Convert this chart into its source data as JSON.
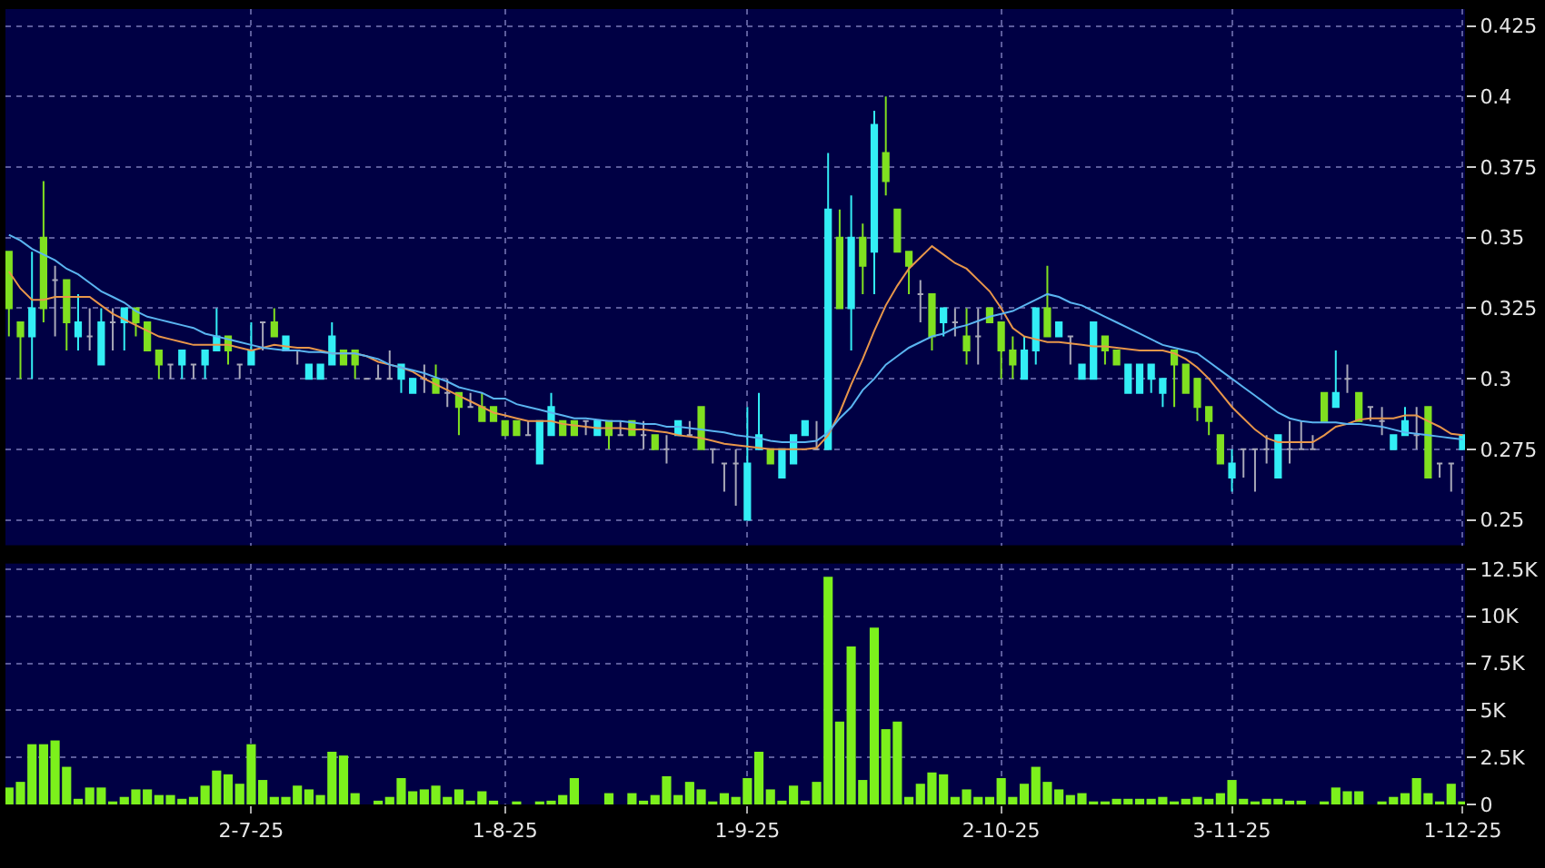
{
  "chart_data": [
    {
      "type": "candlestick",
      "categories": [
        null,
        null,
        null,
        null,
        null,
        null,
        null,
        null,
        null,
        null,
        null,
        null,
        null,
        null,
        null,
        null,
        null,
        null,
        null,
        null,
        null,
        null,
        null,
        null,
        null,
        null,
        null,
        null,
        null,
        null,
        null,
        null,
        null,
        null,
        null,
        null,
        null,
        null,
        null,
        null,
        null,
        null,
        null,
        null,
        null,
        null,
        null,
        null,
        null,
        null,
        null,
        null,
        null,
        null,
        null,
        null,
        null,
        null,
        null,
        null,
        null,
        null,
        null,
        null,
        null,
        null,
        null,
        null,
        null,
        null,
        null,
        null,
        null,
        null,
        null,
        null,
        null,
        null,
        null,
        null,
        null,
        null,
        null,
        null,
        null,
        null,
        null,
        null,
        null,
        null,
        null,
        null,
        null,
        null,
        null,
        null,
        null,
        null,
        null,
        null,
        null,
        null,
        null,
        null,
        null,
        null,
        null,
        null,
        null,
        null,
        null,
        null,
        null,
        null,
        null,
        null,
        null,
        null,
        null,
        null,
        null,
        null,
        null,
        null,
        null,
        null,
        null
      ],
      "ohlc": [
        [
          0.345,
          0.345,
          0.315,
          0.325
        ],
        [
          0.32,
          0.32,
          0.3,
          0.315
        ],
        [
          0.315,
          0.345,
          0.3,
          0.325
        ],
        [
          0.35,
          0.37,
          0.32,
          0.325
        ],
        [
          0.335,
          0.34,
          0.315,
          0.335
        ],
        [
          0.335,
          0.335,
          0.31,
          0.32
        ],
        [
          0.315,
          0.33,
          0.31,
          0.32
        ],
        [
          0.315,
          0.325,
          0.31,
          0.315
        ],
        [
          0.305,
          0.325,
          0.305,
          0.32
        ],
        [
          0.32,
          0.325,
          0.31,
          0.32
        ],
        [
          0.32,
          0.325,
          0.31,
          0.325
        ],
        [
          0.325,
          0.325,
          0.315,
          0.32
        ],
        [
          0.32,
          0.32,
          0.31,
          0.31
        ],
        [
          0.31,
          0.31,
          0.3,
          0.305
        ],
        [
          0.305,
          0.305,
          0.3,
          0.305
        ],
        [
          0.305,
          0.31,
          0.3,
          0.31
        ],
        [
          0.305,
          0.305,
          0.3,
          0.305
        ],
        [
          0.305,
          0.31,
          0.3,
          0.31
        ],
        [
          0.31,
          0.325,
          0.31,
          0.315
        ],
        [
          0.315,
          0.315,
          0.305,
          0.31
        ],
        [
          0.305,
          0.305,
          0.3,
          0.305
        ],
        [
          0.305,
          0.32,
          0.305,
          0.31
        ],
        [
          0.32,
          0.32,
          0.31,
          0.32
        ],
        [
          0.32,
          0.325,
          0.315,
          0.315
        ],
        [
          0.31,
          0.315,
          0.31,
          0.315
        ],
        [
          0.31,
          0.31,
          0.305,
          0.31
        ],
        [
          0.3,
          0.305,
          0.3,
          0.305
        ],
        [
          0.3,
          0.305,
          0.3,
          0.305
        ],
        [
          0.305,
          0.32,
          0.305,
          0.315
        ],
        [
          0.31,
          0.31,
          0.305,
          0.305
        ],
        [
          0.31,
          0.31,
          0.3,
          0.305
        ],
        [
          0.3,
          0.3,
          0.3,
          0.3
        ],
        [
          0.3,
          0.305,
          0.3,
          0.3
        ],
        [
          0.3,
          0.31,
          0.3,
          0.3
        ],
        [
          0.3,
          0.305,
          0.295,
          0.305
        ],
        [
          0.295,
          0.3,
          0.295,
          0.3
        ],
        [
          0.3,
          0.305,
          0.295,
          0.3
        ],
        [
          0.3,
          0.305,
          0.295,
          0.295
        ],
        [
          0.295,
          0.3,
          0.29,
          0.295
        ],
        [
          0.295,
          0.295,
          0.28,
          0.29
        ],
        [
          0.29,
          0.295,
          0.29,
          0.29
        ],
        [
          0.29,
          0.295,
          0.285,
          0.285
        ],
        [
          0.29,
          0.29,
          0.285,
          0.285
        ],
        [
          0.285,
          0.285,
          0.28,
          0.28
        ],
        [
          0.285,
          0.285,
          0.28,
          0.28
        ],
        [
          0.28,
          0.285,
          0.28,
          0.28
        ],
        [
          0.27,
          0.285,
          0.27,
          0.285
        ],
        [
          0.28,
          0.295,
          0.28,
          0.29
        ],
        [
          0.285,
          0.285,
          0.28,
          0.28
        ],
        [
          0.285,
          0.285,
          0.28,
          0.28
        ],
        [
          0.285,
          0.285,
          0.28,
          0.285
        ],
        [
          0.28,
          0.285,
          0.28,
          0.285
        ],
        [
          0.285,
          0.285,
          0.275,
          0.28
        ],
        [
          0.28,
          0.285,
          0.28,
          0.28
        ],
        [
          0.285,
          0.285,
          0.28,
          0.28
        ],
        [
          0.28,
          0.285,
          0.275,
          0.28
        ],
        [
          0.28,
          0.28,
          0.275,
          0.275
        ],
        [
          0.275,
          0.28,
          0.27,
          0.275
        ],
        [
          0.28,
          0.285,
          0.28,
          0.285
        ],
        [
          0.28,
          0.285,
          0.28,
          0.28
        ],
        [
          0.29,
          0.29,
          0.275,
          0.275
        ],
        [
          0.275,
          0.275,
          0.27,
          0.275
        ],
        [
          0.27,
          0.27,
          0.26,
          0.27
        ],
        [
          0.27,
          0.275,
          0.255,
          0.27
        ],
        [
          0.25,
          0.29,
          0.25,
          0.27
        ],
        [
          0.275,
          0.295,
          0.275,
          0.28
        ],
        [
          0.275,
          0.275,
          0.27,
          0.27
        ],
        [
          0.265,
          0.275,
          0.265,
          0.275
        ],
        [
          0.27,
          0.28,
          0.27,
          0.28
        ],
        [
          0.28,
          0.285,
          0.28,
          0.285
        ],
        [
          0.275,
          0.285,
          0.275,
          0.275
        ],
        [
          0.275,
          0.38,
          0.275,
          0.36
        ],
        [
          0.35,
          0.36,
          0.325,
          0.325
        ],
        [
          0.325,
          0.365,
          0.31,
          0.35
        ],
        [
          0.35,
          0.355,
          0.33,
          0.34
        ],
        [
          0.345,
          0.395,
          0.33,
          0.39
        ],
        [
          0.38,
          0.4,
          0.365,
          0.37
        ],
        [
          0.36,
          0.36,
          0.345,
          0.345
        ],
        [
          0.345,
          0.345,
          0.33,
          0.34
        ],
        [
          0.33,
          0.335,
          0.32,
          0.33
        ],
        [
          0.33,
          0.33,
          0.31,
          0.315
        ],
        [
          0.32,
          0.325,
          0.315,
          0.325
        ],
        [
          0.32,
          0.325,
          0.315,
          0.32
        ],
        [
          0.315,
          0.325,
          0.305,
          0.31
        ],
        [
          0.315,
          0.325,
          0.305,
          0.315
        ],
        [
          0.325,
          0.325,
          0.32,
          0.32
        ],
        [
          0.32,
          0.32,
          0.3,
          0.31
        ],
        [
          0.31,
          0.315,
          0.3,
          0.305
        ],
        [
          0.3,
          0.315,
          0.3,
          0.31
        ],
        [
          0.31,
          0.325,
          0.305,
          0.325
        ],
        [
          0.325,
          0.34,
          0.315,
          0.315
        ],
        [
          0.315,
          0.32,
          0.315,
          0.32
        ],
        [
          0.315,
          0.315,
          0.305,
          0.315
        ],
        [
          0.3,
          0.305,
          0.3,
          0.305
        ],
        [
          0.3,
          0.32,
          0.3,
          0.32
        ],
        [
          0.315,
          0.315,
          0.305,
          0.31
        ],
        [
          0.31,
          0.31,
          0.305,
          0.305
        ],
        [
          0.295,
          0.305,
          0.295,
          0.305
        ],
        [
          0.295,
          0.305,
          0.295,
          0.305
        ],
        [
          0.3,
          0.305,
          0.295,
          0.305
        ],
        [
          0.295,
          0.3,
          0.29,
          0.3
        ],
        [
          0.31,
          0.31,
          0.29,
          0.305
        ],
        [
          0.305,
          0.305,
          0.295,
          0.295
        ],
        [
          0.3,
          0.3,
          0.285,
          0.29
        ],
        [
          0.29,
          0.29,
          0.28,
          0.285
        ],
        [
          0.28,
          0.28,
          0.27,
          0.27
        ],
        [
          0.265,
          0.275,
          0.26,
          0.27
        ],
        [
          0.275,
          0.275,
          0.265,
          0.275
        ],
        [
          0.275,
          0.275,
          0.26,
          0.275
        ],
        [
          0.275,
          0.28,
          0.27,
          0.275
        ],
        [
          0.265,
          0.28,
          0.265,
          0.28
        ],
        [
          0.275,
          0.285,
          0.27,
          0.275
        ],
        [
          0.275,
          0.285,
          0.275,
          0.275
        ],
        [
          0.275,
          0.28,
          0.275,
          0.275
        ],
        [
          0.295,
          0.295,
          0.285,
          0.285
        ],
        [
          0.29,
          0.31,
          0.29,
          0.295
        ],
        [
          0.3,
          0.305,
          0.295,
          0.3
        ],
        [
          0.295,
          0.295,
          0.285,
          0.285
        ],
        [
          0.29,
          0.29,
          0.285,
          0.29
        ],
        [
          0.285,
          0.29,
          0.28,
          0.285
        ],
        [
          0.275,
          0.28,
          0.275,
          0.28
        ],
        [
          0.28,
          0.29,
          0.28,
          0.285
        ],
        [
          0.28,
          0.29,
          0.275,
          0.28
        ],
        [
          0.29,
          0.29,
          0.265,
          0.265
        ],
        [
          0.27,
          0.27,
          0.265,
          0.27
        ],
        [
          0.27,
          0.27,
          0.26,
          0.27
        ],
        [
          0.275,
          0.28,
          0.275,
          0.28
        ]
      ],
      "colors": [
        "#80e020",
        "#80e020",
        "#33eef5",
        "#80e020",
        "#a8a8b8",
        "#80e020",
        "#33eef5",
        "#a8a8b8",
        "#33eef5",
        "#a8a8b8",
        "#33eef5",
        "#80e020",
        "#80e020",
        "#80e020",
        "#a8a8b8",
        "#33eef5",
        "#a8a8b8",
        "#33eef5",
        "#33eef5",
        "#80e020",
        "#a8a8b8",
        "#33eef5",
        "#a8a8b8",
        "#80e020",
        "#33eef5",
        "#a8a8b8",
        "#33eef5",
        "#33eef5",
        "#33eef5",
        "#80e020",
        "#80e020",
        "#a8a8b8",
        "#a8a8b8",
        "#a8a8b8",
        "#33eef5",
        "#33eef5",
        "#a8a8b8",
        "#80e020",
        "#a8a8b8",
        "#80e020",
        "#a8a8b8",
        "#80e020",
        "#80e020",
        "#80e020",
        "#80e020",
        "#a8a8b8",
        "#33eef5",
        "#33eef5",
        "#80e020",
        "#80e020",
        "#a8a8b8",
        "#33eef5",
        "#80e020",
        "#a8a8b8",
        "#80e020",
        "#a8a8b8",
        "#80e020",
        "#a8a8b8",
        "#33eef5",
        "#a8a8b8",
        "#80e020",
        "#a8a8b8",
        "#a8a8b8",
        "#a8a8b8",
        "#33eef5",
        "#33eef5",
        "#80e020",
        "#33eef5",
        "#33eef5",
        "#33eef5",
        "#a8a8b8",
        "#33eef5",
        "#80e020",
        "#33eef5",
        "#80e020",
        "#33eef5",
        "#80e020",
        "#80e020",
        "#80e020",
        "#a8a8b8",
        "#80e020",
        "#33eef5",
        "#a8a8b8",
        "#80e020",
        "#a8a8b8",
        "#80e020",
        "#80e020",
        "#80e020",
        "#33eef5",
        "#33eef5",
        "#80e020",
        "#33eef5",
        "#a8a8b8",
        "#33eef5",
        "#33eef5",
        "#80e020",
        "#80e020",
        "#33eef5",
        "#33eef5",
        "#33eef5",
        "#33eef5",
        "#80e020",
        "#80e020",
        "#80e020",
        "#80e020",
        "#80e020",
        "#33eef5",
        "#a8a8b8",
        "#a8a8b8",
        "#a8a8b8",
        "#33eef5",
        "#a8a8b8",
        "#a8a8b8",
        "#a8a8b8",
        "#80e020",
        "#33eef5",
        "#a8a8b8",
        "#80e020",
        "#a8a8b8",
        "#a8a8b8",
        "#33eef5",
        "#33eef5",
        "#a8a8b8",
        "#80e020",
        "#a8a8b8",
        "#a8a8b8",
        "#33eef5"
      ],
      "series": [
        {
          "type": "line",
          "color": "#e8964a",
          "values": [
            0.338,
            0.332,
            0.328,
            0.328,
            0.329,
            0.329,
            0.329,
            0.329,
            0.326,
            0.323,
            0.321,
            0.319,
            0.317,
            0.315,
            0.314,
            0.313,
            0.312,
            0.312,
            0.312,
            0.312,
            0.311,
            0.31,
            0.311,
            0.312,
            0.3115,
            0.311,
            0.311,
            0.31,
            0.309,
            0.309,
            0.309,
            0.308,
            0.306,
            0.305,
            0.304,
            0.3025,
            0.3,
            0.298,
            0.296,
            0.294,
            0.292,
            0.29,
            0.288,
            0.287,
            0.286,
            0.285,
            0.285,
            0.285,
            0.284,
            0.2835,
            0.283,
            0.2825,
            0.2825,
            0.2825,
            0.282,
            0.282,
            0.2815,
            0.281,
            0.28,
            0.2795,
            0.279,
            0.278,
            0.277,
            0.2765,
            0.276,
            0.2755,
            0.275,
            0.275,
            0.275,
            0.275,
            0.2755,
            0.28,
            0.288,
            0.298,
            0.307,
            0.317,
            0.326,
            0.333,
            0.339,
            0.343,
            0.347,
            0.344,
            0.341,
            0.339,
            0.335,
            0.331,
            0.325,
            0.318,
            0.315,
            0.314,
            0.313,
            0.313,
            0.3125,
            0.312,
            0.3115,
            0.3115,
            0.311,
            0.3105,
            0.31,
            0.31,
            0.31,
            0.309,
            0.307,
            0.304,
            0.3,
            0.295,
            0.29,
            0.286,
            0.282,
            0.279,
            0.2775,
            0.2775,
            0.2775,
            0.2775,
            0.28,
            0.283,
            0.284,
            0.2855,
            0.286,
            0.286,
            0.286,
            0.287,
            0.287,
            0.285,
            0.283,
            0.2805,
            0.28
          ]
        },
        {
          "type": "line",
          "color": "#5ab4f0",
          "values": [
            0.351,
            0.349,
            0.346,
            0.344,
            0.342,
            0.339,
            0.337,
            0.334,
            0.331,
            0.329,
            0.327,
            0.324,
            0.322,
            0.321,
            0.32,
            0.319,
            0.318,
            0.316,
            0.315,
            0.314,
            0.313,
            0.312,
            0.311,
            0.3105,
            0.31,
            0.31,
            0.3095,
            0.3095,
            0.309,
            0.309,
            0.309,
            0.308,
            0.307,
            0.305,
            0.304,
            0.303,
            0.302,
            0.3005,
            0.299,
            0.297,
            0.296,
            0.295,
            0.293,
            0.293,
            0.291,
            0.29,
            0.289,
            0.288,
            0.287,
            0.286,
            0.286,
            0.2855,
            0.285,
            0.285,
            0.2845,
            0.284,
            0.284,
            0.283,
            0.283,
            0.2825,
            0.282,
            0.2815,
            0.281,
            0.28,
            0.2795,
            0.279,
            0.278,
            0.2775,
            0.2775,
            0.2775,
            0.278,
            0.281,
            0.286,
            0.29,
            0.296,
            0.3,
            0.305,
            0.308,
            0.311,
            0.313,
            0.315,
            0.316,
            0.318,
            0.319,
            0.3205,
            0.322,
            0.323,
            0.324,
            0.326,
            0.328,
            0.33,
            0.329,
            0.327,
            0.326,
            0.324,
            0.322,
            0.32,
            0.318,
            0.316,
            0.314,
            0.312,
            0.311,
            0.31,
            0.309,
            0.306,
            0.303,
            0.3,
            0.297,
            0.294,
            0.291,
            0.288,
            0.286,
            0.285,
            0.2845,
            0.2845,
            0.2845,
            0.284,
            0.284,
            0.2835,
            0.283,
            0.282,
            0.281,
            0.2805,
            0.28,
            0.2795,
            0.279,
            0.2785
          ]
        }
      ],
      "ylim": [
        0.241,
        0.431
      ],
      "yticks": [
        0.25,
        0.275,
        0.3,
        0.325,
        0.35,
        0.375,
        0.4,
        0.425
      ],
      "grid": true,
      "tick_labels": "y"
    },
    {
      "type": "bar",
      "categories": [
        null,
        null,
        null,
        null,
        null,
        null,
        null,
        null,
        null,
        null,
        null,
        null,
        null,
        null,
        null,
        null,
        null,
        null,
        null,
        null,
        null,
        "2-7-25",
        null,
        null,
        null,
        null,
        null,
        null,
        null,
        null,
        null,
        null,
        null,
        null,
        null,
        null,
        null,
        null,
        null,
        null,
        null,
        null,
        null,
        "1-8-25",
        null,
        null,
        null,
        null,
        null,
        null,
        null,
        null,
        null,
        null,
        null,
        null,
        null,
        null,
        null,
        null,
        null,
        null,
        null,
        null,
        "1-9-25",
        null,
        null,
        null,
        null,
        null,
        null,
        null,
        null,
        null,
        null,
        null,
        null,
        null,
        null,
        null,
        null,
        null,
        null,
        null,
        null,
        null,
        "2-10-25",
        null,
        null,
        null,
        null,
        null,
        null,
        null,
        null,
        null,
        null,
        null,
        null,
        null,
        null,
        null,
        null,
        null,
        null,
        null,
        "3-11-25",
        null,
        null,
        null,
        null,
        null,
        null,
        null,
        null,
        null,
        null,
        null,
        null,
        null,
        null,
        null,
        null,
        null,
        null,
        null,
        "1-12-25"
      ],
      "values": [
        900,
        1200,
        3200,
        3200,
        3400,
        2000,
        300,
        900,
        900,
        100,
        400,
        800,
        800,
        500,
        500,
        300,
        400,
        1000,
        1800,
        1600,
        1100,
        3200,
        1300,
        400,
        400,
        1000,
        800,
        500,
        2800,
        2600,
        600,
        0,
        200,
        400,
        1400,
        700,
        800,
        1000,
        400,
        800,
        200,
        700,
        200,
        0,
        100,
        0,
        100,
        200,
        500,
        1400,
        0,
        0,
        600,
        0,
        600,
        200,
        500,
        1500,
        500,
        1200,
        800,
        100,
        600,
        400,
        1400,
        2800,
        800,
        200,
        1000,
        200,
        1200,
        12100,
        4400,
        8400,
        1300,
        9400,
        4000,
        4400,
        400,
        1100,
        1700,
        1600,
        400,
        800,
        400,
        400,
        1400,
        400,
        1100,
        2000,
        1200,
        800,
        500,
        600,
        100,
        100,
        300,
        300,
        300,
        300,
        400,
        100,
        300,
        400,
        300,
        600,
        1300,
        300,
        100,
        300,
        300,
        200,
        200,
        0,
        100,
        900,
        700,
        700,
        0,
        100,
        400,
        600,
        1400,
        600,
        100,
        1100,
        100
      ],
      "color": "#7cf01c",
      "ylim": [
        0,
        12800
      ],
      "yticks": [
        0,
        {
          "value": 2500,
          "label": "2.5K"
        },
        {
          "value": 5000,
          "label": "5K"
        },
        {
          "value": 7500,
          "label": "7.5K"
        },
        {
          "value": 10000,
          "label": "10K"
        },
        {
          "value": 12500,
          "label": "12.5K"
        }
      ],
      "grid": true
    }
  ]
}
